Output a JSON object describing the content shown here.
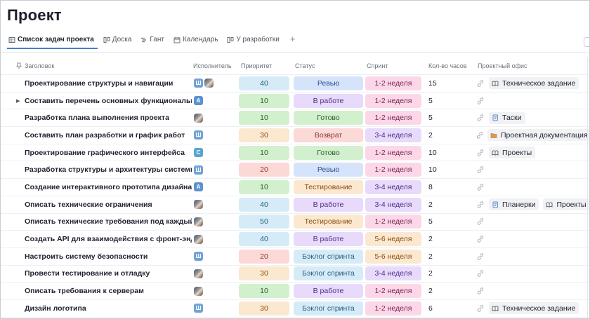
{
  "page_title": "Проект",
  "tabs": [
    {
      "label": "Список задач проекта",
      "icon": "table-icon",
      "active": true
    },
    {
      "label": "Доска",
      "icon": "board-icon",
      "active": false
    },
    {
      "label": "Гант",
      "icon": "gantt-icon",
      "active": false
    },
    {
      "label": "Календарь",
      "icon": "calendar-icon",
      "active": false
    },
    {
      "label": "У разработки",
      "icon": "board-icon",
      "active": false
    }
  ],
  "add_tab_label": "+",
  "columns": {
    "title": "Заголовок",
    "assignee": "Исполнитель",
    "priority": "Приоритет",
    "status": "Статус",
    "sprint": "Спринт",
    "hours": "Кол-во часов",
    "office": "Проектный офис"
  },
  "colors": {
    "prio": {
      "40": [
        "#d5ecf8",
        "#2c5f7e"
      ],
      "10": [
        "#d2f0cd",
        "#2d5e2a"
      ],
      "30": [
        "#fbe8d0",
        "#8a4e12"
      ],
      "20": [
        "#fbd9d6",
        "#8c3a33"
      ],
      "50": [
        "#d5ecf8",
        "#2c5f7e"
      ]
    },
    "status": {
      "Ревью": [
        "#d6e4fb",
        "#2d4e8f"
      ],
      "В работе": [
        "#e7dafb",
        "#4d2f85"
      ],
      "Готово": [
        "#d2f0cd",
        "#2d5e2a"
      ],
      "Возврат": [
        "#fbd9d6",
        "#8c3a33"
      ],
      "Тестирование": [
        "#fbe8d0",
        "#8a4e12"
      ],
      "Бэклог спринта": [
        "#d5ecf8",
        "#2c5f7e"
      ]
    },
    "sprint": {
      "1-2 неделя": [
        "#fbd7e8",
        "#7a2450"
      ],
      "3-4 неделя": [
        "#e7dafb",
        "#4d2f85"
      ],
      "5-6 неделя": [
        "#fbe8d0",
        "#8a4e12"
      ]
    }
  },
  "rows": [
    {
      "title": "Проектирование структуры и навигации",
      "expandable": false,
      "assignees": [
        {
          "letter": "Ш",
          "color": "#6fa3d6"
        },
        {
          "photo": true
        }
      ],
      "priority": "40",
      "status": "Ревью",
      "sprint": "1-2 неделя",
      "hours": "15",
      "office": [
        {
          "label": "Техническое задание",
          "icon": "book-icon"
        }
      ]
    },
    {
      "title": "Составить перечень основных функциональных",
      "expandable": true,
      "assignees": [
        {
          "letter": "А",
          "color": "#5b93cf"
        }
      ],
      "priority": "10",
      "status": "В работе",
      "sprint": "1-2 неделя",
      "hours": "5",
      "office": []
    },
    {
      "title": "Разработка плана выполнения проекта",
      "expandable": false,
      "assignees": [
        {
          "photo": true
        }
      ],
      "priority": "10",
      "status": "Готово",
      "sprint": "1-2 неделя",
      "hours": "5",
      "office": [
        {
          "label": "Таски",
          "icon": "doc-icon"
        }
      ]
    },
    {
      "title": "Составить план разработки и график работ",
      "expandable": false,
      "assignees": [
        {
          "letter": "Ш",
          "color": "#6fa3d6"
        }
      ],
      "priority": "30",
      "status": "Возврат",
      "sprint": "3-4 неделя",
      "hours": "2",
      "office": [
        {
          "label": "Проектная документация",
          "icon": "folder-icon"
        }
      ]
    },
    {
      "title": "Проектирование графического интерфейса",
      "expandable": false,
      "assignees": [
        {
          "letter": "С",
          "color": "#5aa6cf"
        }
      ],
      "priority": "10",
      "status": "Готово",
      "sprint": "1-2 неделя",
      "hours": "10",
      "office": [
        {
          "label": "Проекты",
          "icon": "book-icon"
        }
      ]
    },
    {
      "title": "Разработка структуры и архитектуры системы",
      "expandable": false,
      "assignees": [
        {
          "letter": "Ш",
          "color": "#6fa3d6"
        }
      ],
      "priority": "20",
      "status": "Ревью",
      "sprint": "1-2 неделя",
      "hours": "10",
      "office": []
    },
    {
      "title": "Создание интерактивного прототипа дизайна пр",
      "expandable": false,
      "assignees": [
        {
          "letter": "А",
          "color": "#5b93cf"
        }
      ],
      "priority": "10",
      "status": "Тестирование",
      "sprint": "3-4 неделя",
      "hours": "8",
      "office": []
    },
    {
      "title": "Описать технические ограничения",
      "expandable": false,
      "assignees": [
        {
          "photo": true
        }
      ],
      "priority": "40",
      "status": "В работе",
      "sprint": "3-4 неделя",
      "hours": "2",
      "office": [
        {
          "label": "Планерки",
          "icon": "doc-icon"
        },
        {
          "label": "Проекты",
          "icon": "book-icon"
        }
      ]
    },
    {
      "title": "Описать технические требования под каждый ко",
      "expandable": false,
      "assignees": [
        {
          "photo": true
        }
      ],
      "priority": "50",
      "status": "Тестирование",
      "sprint": "1-2 неделя",
      "hours": "5",
      "office": []
    },
    {
      "title": "Создать API для взаимодействия с фронт-энд час",
      "expandable": false,
      "assignees": [
        {
          "photo": true
        }
      ],
      "priority": "40",
      "status": "В работе",
      "sprint": "5-6 неделя",
      "hours": "2",
      "office": []
    },
    {
      "title": "Настроить систему безопасности",
      "expandable": false,
      "assignees": [
        {
          "letter": "Ш",
          "color": "#6fa3d6"
        }
      ],
      "priority": "20",
      "status": "Бэклог спринта",
      "sprint": "5-6 неделя",
      "hours": "2",
      "office": []
    },
    {
      "title": "Провести тестирование и отладку",
      "expandable": false,
      "assignees": [
        {
          "photo": true
        }
      ],
      "priority": "30",
      "status": "Бэклог спринта",
      "sprint": "3-4 неделя",
      "hours": "2",
      "office": []
    },
    {
      "title": "Описать требования к серверам",
      "expandable": false,
      "assignees": [
        {
          "photo": true
        }
      ],
      "priority": "10",
      "status": "В работе",
      "sprint": "1-2 неделя",
      "hours": "2",
      "office": []
    },
    {
      "title": "Дизайн логотипа",
      "expandable": false,
      "assignees": [
        {
          "letter": "Ш",
          "color": "#6fa3d6"
        }
      ],
      "priority": "30",
      "status": "Бэклог спринта",
      "sprint": "1-2 неделя",
      "hours": "6",
      "office": [
        {
          "label": "Техническое задание",
          "icon": "book-icon"
        }
      ]
    }
  ]
}
